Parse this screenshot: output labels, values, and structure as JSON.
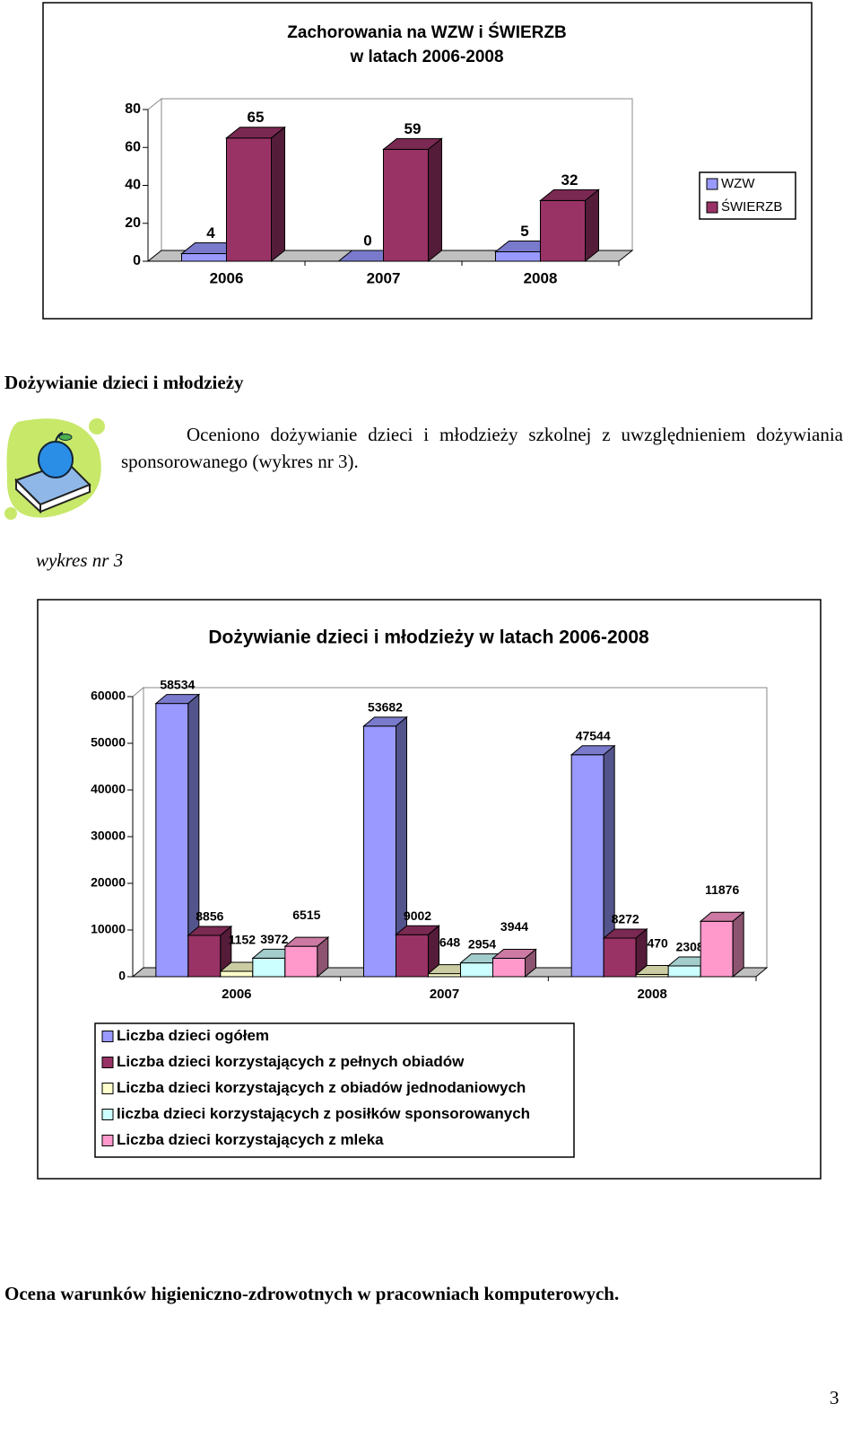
{
  "chart_data": [
    {
      "type": "bar3d",
      "title": [
        "Zachorowania na WZW i ŚWIERZB",
        "w latach 2006-2008"
      ],
      "categories": [
        "2006",
        "2007",
        "2008"
      ],
      "series": [
        {
          "name": "WZW",
          "color": "#9999ff",
          "values": [
            4,
            0,
            5
          ]
        },
        {
          "name": "ŚWIERZB",
          "color": "#993366",
          "values": [
            65,
            59,
            32
          ]
        }
      ],
      "ylim": [
        0,
        80
      ],
      "yticks": [
        0,
        20,
        40,
        60,
        80
      ],
      "legend": "right"
    },
    {
      "type": "bar3d",
      "title": "Dożywianie dzieci i młodzieży w latach 2006-2008",
      "categories": [
        "2006",
        "2007",
        "2008"
      ],
      "series": [
        {
          "name": "Liczba dzieci ogółem",
          "color": "#9999ff",
          "values": [
            58534,
            53682,
            47544
          ]
        },
        {
          "name": "Liczba dzieci korzystających z pełnych obiadów",
          "color": "#993366",
          "values": [
            8856,
            9002,
            8272
          ]
        },
        {
          "name": "Liczba dzieci korzystających z obiadów jednodaniowych",
          "color": "#ffffcc",
          "values": [
            1152,
            648,
            470
          ]
        },
        {
          "name": "liczba dzieci korzystających z posiłków sponsorowanych",
          "color": "#ccffff",
          "values": [
            3972,
            2954,
            2308
          ]
        },
        {
          "name": "Liczba dzieci korzystających z mleka",
          "color": "#ff99cc",
          "values": [
            6515,
            3944,
            11876
          ]
        }
      ],
      "ylim": [
        0,
        60000
      ],
      "yticks": [
        0,
        10000,
        20000,
        30000,
        40000,
        50000,
        60000
      ],
      "legend": "bottom"
    }
  ],
  "document": {
    "heading": "Dożywianie dzieci i młodzieży",
    "paragraph": "Oceniono dożywianie dzieci i młodzieży szkolnej z uwzględnieniem dożywiania sponsorowanego (wykres nr 3).",
    "caption": "wykres nr 3",
    "heading2": "Ocena warunków higieniczno-zdrowotnych w pracowniach komputerowych.",
    "page_number": 3
  }
}
